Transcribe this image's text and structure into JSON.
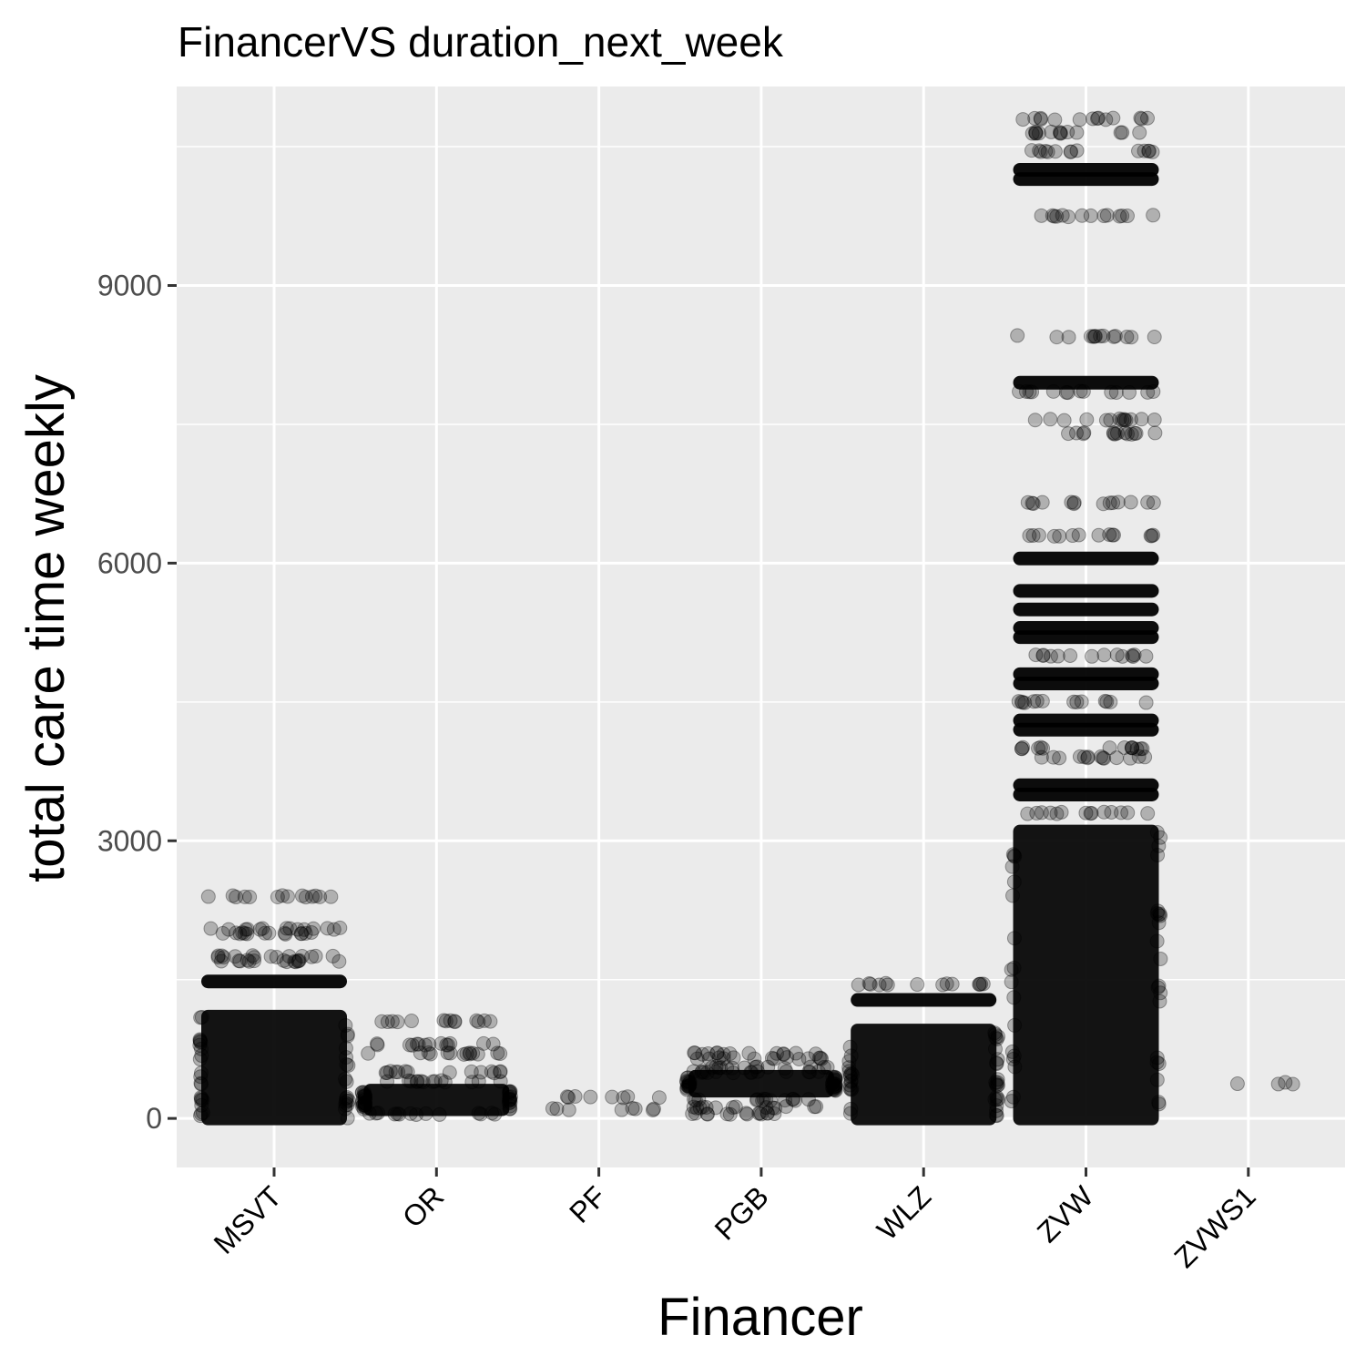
{
  "chart_data": {
    "type": "scatter",
    "title": "FinancerVS duration_next_week",
    "xlabel": "Financer",
    "ylabel": "total care time weekly",
    "categories": [
      "MSVT",
      "OR",
      "PF",
      "PGB",
      "WLZ",
      "ZVW",
      "ZVWS1"
    ],
    "y_ticks": [
      0,
      3000,
      6000,
      9000
    ],
    "ylim": [
      -530,
      11150
    ],
    "grid": true,
    "background": "#ebebeb",
    "point_color": "#000000",
    "point_alpha": 0.25,
    "series": [
      {
        "category": "MSVT",
        "solid_range": [
          0,
          1100
        ],
        "dense_levels": [
          1480
        ],
        "sparse_levels": [
          1700,
          1750,
          2000,
          2050,
          2400
        ]
      },
      {
        "category": "OR",
        "solid_range": [
          100,
          300
        ],
        "dense_levels": [],
        "sparse_levels": [
          50,
          400,
          500,
          700,
          800,
          1050
        ]
      },
      {
        "category": "PF",
        "solid_range": null,
        "dense_levels": [],
        "sparse_levels": [
          100,
          230
        ]
      },
      {
        "category": "PGB",
        "solid_range": [
          300,
          450
        ],
        "dense_levels": [],
        "sparse_levels": [
          50,
          120,
          200,
          500,
          550,
          650,
          700
        ]
      },
      {
        "category": "WLZ",
        "solid_range": [
          0,
          950
        ],
        "dense_levels": [
          1280
        ],
        "sparse_levels": [
          1450
        ]
      },
      {
        "category": "ZVW",
        "solid_range": [
          0,
          3100
        ],
        "dense_levels": [
          3500,
          3600,
          4200,
          4300,
          4700,
          4800,
          5200,
          5300,
          5500,
          5700,
          6050,
          7950,
          10150,
          10250
        ],
        "sparse_levels": [
          3300,
          3900,
          4000,
          4500,
          5000,
          6300,
          6650,
          7400,
          7550,
          7850,
          8450,
          9750,
          10450,
          10650,
          10800
        ]
      },
      {
        "category": "ZVWS1",
        "solid_range": null,
        "dense_levels": [],
        "sparse_levels": [
          380
        ]
      }
    ]
  }
}
